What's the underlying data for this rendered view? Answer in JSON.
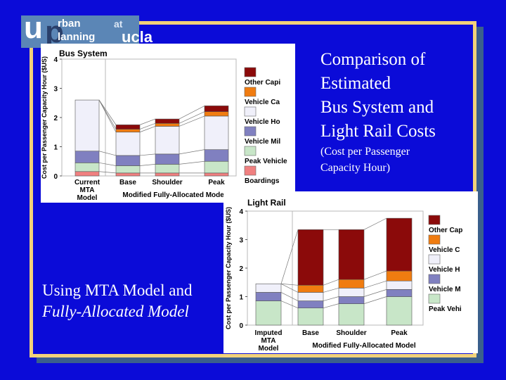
{
  "logo": {
    "u": "u",
    "p": "p",
    "line1": "rban",
    "line2": "lanning",
    "at": "at",
    "ucla": "ucla"
  },
  "slide": {
    "title_lines": [
      "Comparison of",
      "Estimated",
      "Bus System and",
      "Light Rail Costs"
    ],
    "subtitle_lines": [
      "(Cost per Passenger",
      "Capacity Hour)"
    ],
    "caption_line1": "Using MTA Model and",
    "caption_line2": "Fully-Allocated Model"
  },
  "colors": {
    "other_capital": "#8b0a0a",
    "vehicle_capital": "#f07c10",
    "vehicle_hours": "#f0f0fa",
    "vehicle_miles": "#8080c0",
    "peak_vehicles": "#c8e6c8",
    "boardings": "#f08080",
    "connector": "#777777"
  },
  "chart_data": [
    {
      "type": "bar",
      "stacked": true,
      "title": "Bus System",
      "ylabel": "Cost per Passenger Capacity Hour ($US)",
      "xlabel": "Modified Fully-Allocated Model",
      "ylim": [
        0,
        4
      ],
      "yticks": [
        "0",
        "1",
        "2",
        "3",
        "4"
      ],
      "categories": [
        "Current MTA Model",
        "Base",
        "Shoulder",
        "Peak"
      ],
      "category_labels": [
        [
          "Current",
          "MTA",
          "Model"
        ],
        [
          "Base"
        ],
        [
          "Shoulder"
        ],
        [
          "Peak"
        ]
      ],
      "series": [
        {
          "name": "Boardings",
          "legend": "Boardings",
          "color_key": "boardings",
          "values": [
            0.15,
            0.1,
            0.1,
            0.1
          ]
        },
        {
          "name": "Peak Vehicles",
          "legend": "Peak Vehicle",
          "color_key": "peak_vehicles",
          "values": [
            0.3,
            0.25,
            0.3,
            0.4
          ]
        },
        {
          "name": "Vehicle Miles",
          "legend": "Vehicle Mil",
          "color_key": "vehicle_miles",
          "values": [
            0.4,
            0.35,
            0.35,
            0.4
          ]
        },
        {
          "name": "Vehicle Hours",
          "legend": "Vehicle Ho",
          "color_key": "vehicle_hours",
          "values": [
            1.75,
            0.8,
            0.95,
            1.15
          ]
        },
        {
          "name": "Vehicle Capital",
          "legend": "Vehicle Ca",
          "color_key": "vehicle_capital",
          "values": [
            0,
            0.1,
            0.1,
            0.15
          ]
        },
        {
          "name": "Other Capital",
          "legend": "Other Capi",
          "color_key": "other_capital",
          "values": [
            0,
            0.15,
            0.15,
            0.2
          ]
        }
      ]
    },
    {
      "type": "bar",
      "stacked": true,
      "title": "Light Rail",
      "ylabel": "Cost per Passenger Capacity Hour ($US)",
      "xlabel": "Modified Fully-Allocated Model",
      "ylim": [
        0,
        4
      ],
      "yticks": [
        "0",
        "1",
        "2",
        "3",
        "4"
      ],
      "categories": [
        "Imputed MTA Model",
        "Base",
        "Shoulder",
        "Peak"
      ],
      "category_labels": [
        [
          "Imputed",
          "MTA",
          "Model"
        ],
        [
          "Base"
        ],
        [
          "Shoulder"
        ],
        [
          "Peak"
        ]
      ],
      "series": [
        {
          "name": "Peak Vehicles",
          "legend": "Peak Vehi",
          "color_key": "peak_vehicles",
          "values": [
            0.85,
            0.6,
            0.75,
            1.0
          ]
        },
        {
          "name": "Vehicle Miles",
          "legend": "Vehicle M",
          "color_key": "vehicle_miles",
          "values": [
            0.3,
            0.25,
            0.25,
            0.25
          ]
        },
        {
          "name": "Vehicle Hours",
          "legend": "Vehicle H",
          "color_key": "vehicle_hours",
          "values": [
            0.3,
            0.3,
            0.3,
            0.3
          ]
        },
        {
          "name": "Vehicle Capital",
          "legend": "Vehicle C",
          "color_key": "vehicle_capital",
          "values": [
            0,
            0.25,
            0.3,
            0.35
          ]
        },
        {
          "name": "Other Capital",
          "legend": "Other Cap",
          "color_key": "other_capital",
          "values": [
            0,
            1.95,
            1.75,
            1.85
          ]
        }
      ]
    }
  ]
}
